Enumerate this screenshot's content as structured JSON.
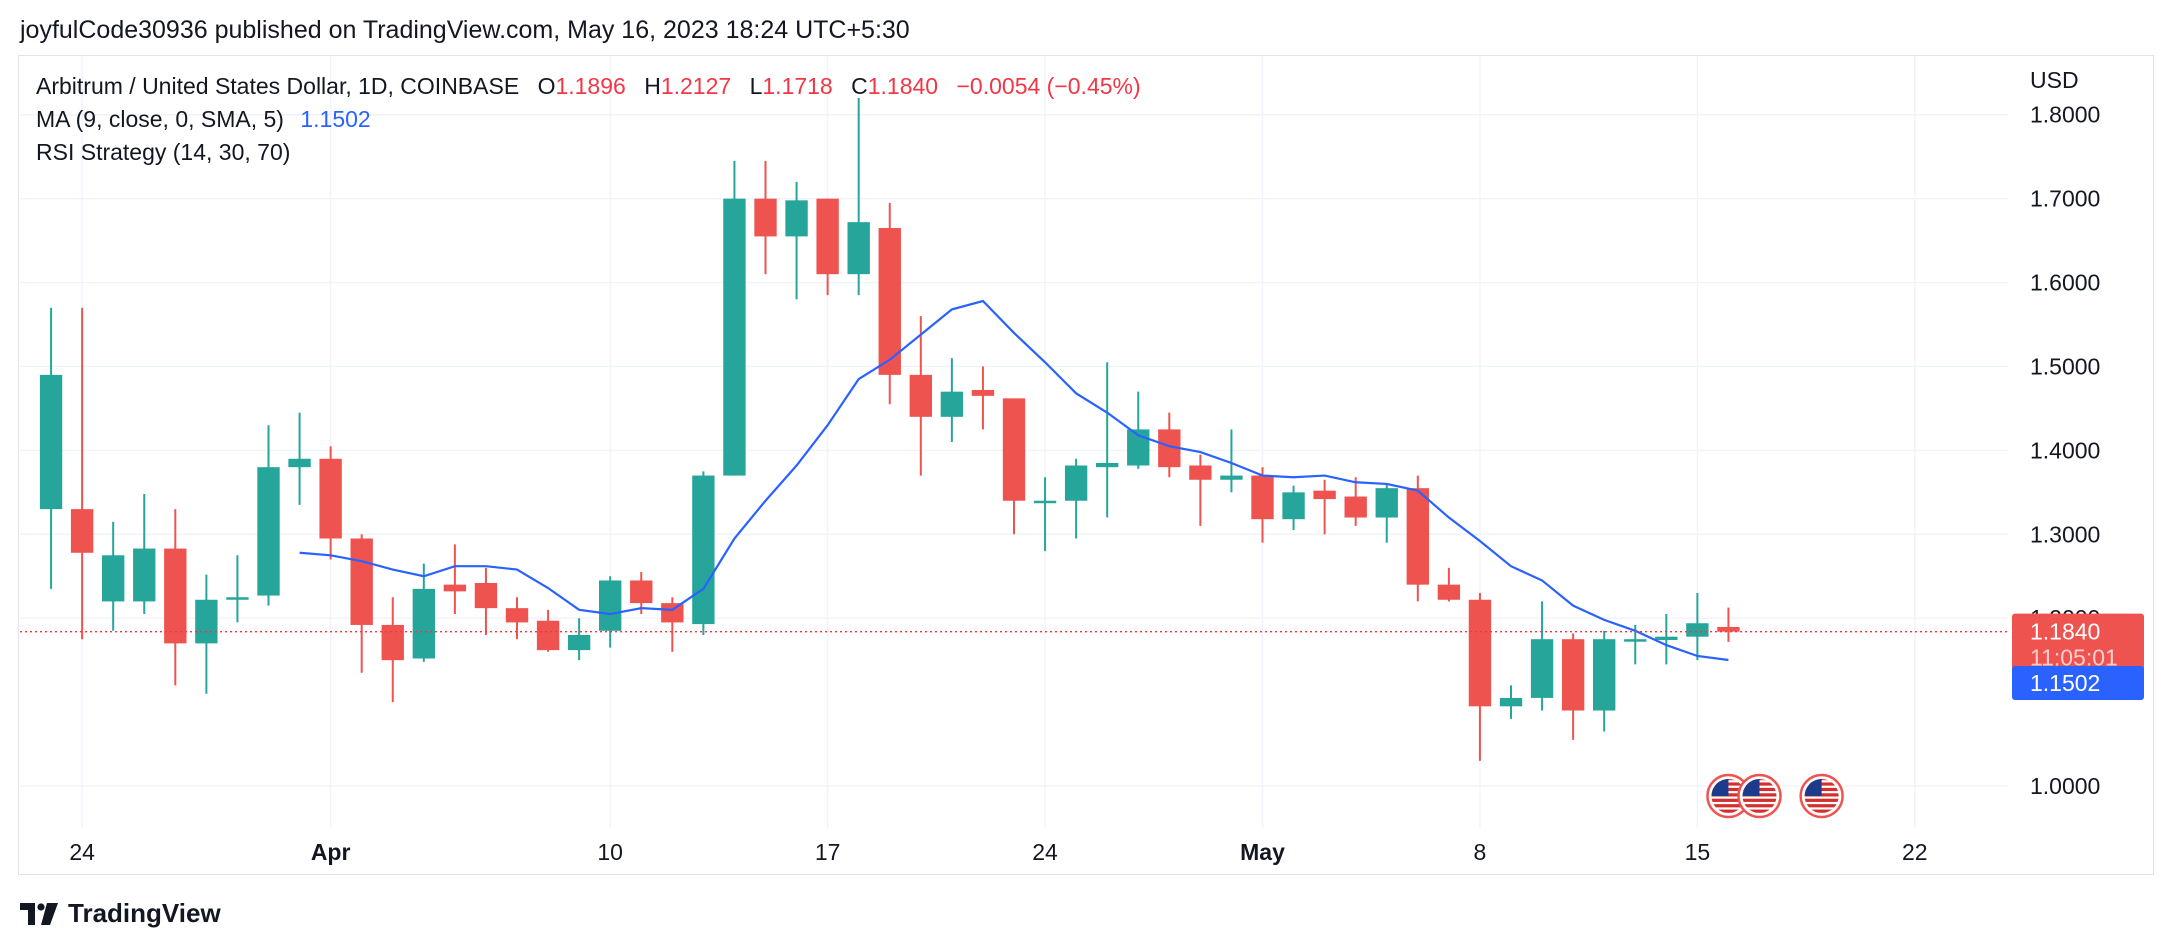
{
  "header": {
    "publisher_line": "joyfulCode30936 published on TradingView.com, May 16, 2023 18:24 UTC+5:30"
  },
  "legend": {
    "symbol": "Arbitrum / United States Dollar, 1D, COINBASE",
    "o_label": "O",
    "o_value": "1.1896",
    "h_label": "H",
    "h_value": "1.2127",
    "l_label": "L",
    "l_value": "1.1718",
    "c_label": "C",
    "c_value": "1.1840",
    "change": "−0.0054 (−0.45%)",
    "ma_label": "MA (9, close, 0, SMA, 5)",
    "ma_value": "1.1502",
    "rsi_label": "RSI Strategy (14, 30, 70)"
  },
  "footer": {
    "brand": "TradingView"
  },
  "colors": {
    "up": "#26a69a",
    "down": "#ef5350",
    "ma": "#2962ff",
    "grid": "#f0f3fa",
    "text": "#131722",
    "price_line": "#f23645"
  },
  "chart_data": {
    "type": "candlestick",
    "currency_label": "USD",
    "y_ticks": [
      "1.8000",
      "1.7000",
      "1.6000",
      "1.5000",
      "1.4000",
      "1.3000",
      "1.2000",
      "1.0000"
    ],
    "ylim": [
      0.95,
      1.87
    ],
    "x_ticks": [
      {
        "date": "2023-03-24",
        "label": "24",
        "bold": false
      },
      {
        "date": "2023-04-01",
        "label": "Apr",
        "bold": true
      },
      {
        "date": "2023-04-10",
        "label": "10",
        "bold": false
      },
      {
        "date": "2023-04-17",
        "label": "17",
        "bold": false
      },
      {
        "date": "2023-04-24",
        "label": "24",
        "bold": false
      },
      {
        "date": "2023-05-01",
        "label": "May",
        "bold": true
      },
      {
        "date": "2023-05-08",
        "label": "8",
        "bold": false
      },
      {
        "date": "2023-05-15",
        "label": "15",
        "bold": false
      },
      {
        "date": "2023-05-22",
        "label": "22",
        "bold": false
      }
    ],
    "x_range": [
      "2023-03-22",
      "2023-05-25"
    ],
    "grid": true,
    "price_label": {
      "value": "1.1840",
      "countdown": "11:05:01"
    },
    "ma_label": {
      "value": "1.1502"
    },
    "event_markers": {
      "icon": "us-flag-icon",
      "dates": [
        "2023-05-16",
        "2023-05-17",
        "2023-05-19"
      ]
    },
    "candles": [
      {
        "date": "2023-03-23",
        "o": 1.33,
        "h": 1.57,
        "l": 1.235,
        "c": 1.49
      },
      {
        "date": "2023-03-24",
        "o": 1.33,
        "h": 1.57,
        "l": 1.175,
        "c": 1.278
      },
      {
        "date": "2023-03-25",
        "o": 1.22,
        "h": 1.315,
        "l": 1.185,
        "c": 1.275
      },
      {
        "date": "2023-03-26",
        "o": 1.22,
        "h": 1.348,
        "l": 1.205,
        "c": 1.283
      },
      {
        "date": "2023-03-27",
        "o": 1.283,
        "h": 1.33,
        "l": 1.12,
        "c": 1.17
      },
      {
        "date": "2023-03-28",
        "o": 1.17,
        "h": 1.252,
        "l": 1.11,
        "c": 1.222
      },
      {
        "date": "2023-03-29",
        "o": 1.222,
        "h": 1.275,
        "l": 1.195,
        "c": 1.225
      },
      {
        "date": "2023-03-30",
        "o": 1.227,
        "h": 1.43,
        "l": 1.215,
        "c": 1.38
      },
      {
        "date": "2023-03-31",
        "o": 1.38,
        "h": 1.445,
        "l": 1.335,
        "c": 1.39
      },
      {
        "date": "2023-04-01",
        "o": 1.39,
        "h": 1.405,
        "l": 1.27,
        "c": 1.295
      },
      {
        "date": "2023-04-02",
        "o": 1.295,
        "h": 1.3,
        "l": 1.135,
        "c": 1.192
      },
      {
        "date": "2023-04-03",
        "o": 1.192,
        "h": 1.225,
        "l": 1.1,
        "c": 1.15
      },
      {
        "date": "2023-04-04",
        "o": 1.152,
        "h": 1.265,
        "l": 1.148,
        "c": 1.235
      },
      {
        "date": "2023-04-05",
        "o": 1.24,
        "h": 1.288,
        "l": 1.205,
        "c": 1.232
      },
      {
        "date": "2023-04-06",
        "o": 1.242,
        "h": 1.26,
        "l": 1.18,
        "c": 1.212
      },
      {
        "date": "2023-04-07",
        "o": 1.212,
        "h": 1.225,
        "l": 1.175,
        "c": 1.195
      },
      {
        "date": "2023-04-08",
        "o": 1.197,
        "h": 1.21,
        "l": 1.16,
        "c": 1.162
      },
      {
        "date": "2023-04-09",
        "o": 1.162,
        "h": 1.2,
        "l": 1.15,
        "c": 1.18
      },
      {
        "date": "2023-04-10",
        "o": 1.185,
        "h": 1.25,
        "l": 1.165,
        "c": 1.245
      },
      {
        "date": "2023-04-11",
        "o": 1.245,
        "h": 1.255,
        "l": 1.205,
        "c": 1.218
      },
      {
        "date": "2023-04-12",
        "o": 1.218,
        "h": 1.225,
        "l": 1.16,
        "c": 1.195
      },
      {
        "date": "2023-04-13",
        "o": 1.193,
        "h": 1.375,
        "l": 1.18,
        "c": 1.37
      },
      {
        "date": "2023-04-14",
        "o": 1.37,
        "h": 1.745,
        "l": 1.37,
        "c": 1.7
      },
      {
        "date": "2023-04-15",
        "o": 1.7,
        "h": 1.745,
        "l": 1.61,
        "c": 1.655
      },
      {
        "date": "2023-04-16",
        "o": 1.655,
        "h": 1.72,
        "l": 1.58,
        "c": 1.698
      },
      {
        "date": "2023-04-17",
        "o": 1.7,
        "h": 1.7,
        "l": 1.585,
        "c": 1.61
      },
      {
        "date": "2023-04-18",
        "o": 1.61,
        "h": 1.82,
        "l": 1.585,
        "c": 1.672
      },
      {
        "date": "2023-04-19",
        "o": 1.665,
        "h": 1.695,
        "l": 1.455,
        "c": 1.49
      },
      {
        "date": "2023-04-20",
        "o": 1.49,
        "h": 1.56,
        "l": 1.37,
        "c": 1.44
      },
      {
        "date": "2023-04-21",
        "o": 1.44,
        "h": 1.51,
        "l": 1.41,
        "c": 1.47
      },
      {
        "date": "2023-04-22",
        "o": 1.472,
        "h": 1.5,
        "l": 1.425,
        "c": 1.465
      },
      {
        "date": "2023-04-23",
        "o": 1.462,
        "h": 1.46,
        "l": 1.3,
        "c": 1.34
      },
      {
        "date": "2023-04-24",
        "o": 1.34,
        "h": 1.368,
        "l": 1.28,
        "c": 1.34
      },
      {
        "date": "2023-04-25",
        "o": 1.34,
        "h": 1.39,
        "l": 1.295,
        "c": 1.382
      },
      {
        "date": "2023-04-26",
        "o": 1.38,
        "h": 1.505,
        "l": 1.32,
        "c": 1.385
      },
      {
        "date": "2023-04-27",
        "o": 1.382,
        "h": 1.47,
        "l": 1.378,
        "c": 1.425
      },
      {
        "date": "2023-04-28",
        "o": 1.425,
        "h": 1.445,
        "l": 1.368,
        "c": 1.38
      },
      {
        "date": "2023-04-29",
        "o": 1.382,
        "h": 1.395,
        "l": 1.31,
        "c": 1.365
      },
      {
        "date": "2023-04-30",
        "o": 1.365,
        "h": 1.425,
        "l": 1.35,
        "c": 1.37
      },
      {
        "date": "2023-05-01",
        "o": 1.37,
        "h": 1.38,
        "l": 1.29,
        "c": 1.318
      },
      {
        "date": "2023-05-02",
        "o": 1.318,
        "h": 1.358,
        "l": 1.305,
        "c": 1.35
      },
      {
        "date": "2023-05-03",
        "o": 1.352,
        "h": 1.365,
        "l": 1.3,
        "c": 1.342
      },
      {
        "date": "2023-05-04",
        "o": 1.345,
        "h": 1.368,
        "l": 1.31,
        "c": 1.32
      },
      {
        "date": "2023-05-05",
        "o": 1.32,
        "h": 1.36,
        "l": 1.29,
        "c": 1.355
      },
      {
        "date": "2023-05-06",
        "o": 1.355,
        "h": 1.37,
        "l": 1.22,
        "c": 1.24
      },
      {
        "date": "2023-05-07",
        "o": 1.24,
        "h": 1.26,
        "l": 1.22,
        "c": 1.222
      },
      {
        "date": "2023-05-08",
        "o": 1.222,
        "h": 1.23,
        "l": 1.03,
        "c": 1.095
      },
      {
        "date": "2023-05-09",
        "o": 1.095,
        "h": 1.12,
        "l": 1.08,
        "c": 1.105
      },
      {
        "date": "2023-05-10",
        "o": 1.105,
        "h": 1.22,
        "l": 1.09,
        "c": 1.175
      },
      {
        "date": "2023-05-11",
        "o": 1.175,
        "h": 1.182,
        "l": 1.055,
        "c": 1.09
      },
      {
        "date": "2023-05-12",
        "o": 1.09,
        "h": 1.185,
        "l": 1.065,
        "c": 1.175
      },
      {
        "date": "2023-05-13",
        "o": 1.175,
        "h": 1.192,
        "l": 1.145,
        "c": 1.175
      },
      {
        "date": "2023-05-14",
        "o": 1.174,
        "h": 1.205,
        "l": 1.145,
        "c": 1.178
      },
      {
        "date": "2023-05-15",
        "o": 1.178,
        "h": 1.23,
        "l": 1.15,
        "c": 1.194
      },
      {
        "date": "2023-05-16",
        "o": 1.1896,
        "h": 1.2127,
        "l": 1.1718,
        "c": 1.184
      }
    ],
    "ma_series": [
      {
        "date": "2023-03-31",
        "v": 1.278
      },
      {
        "date": "2023-04-01",
        "v": 1.275
      },
      {
        "date": "2023-04-02",
        "v": 1.268
      },
      {
        "date": "2023-04-03",
        "v": 1.258
      },
      {
        "date": "2023-04-04",
        "v": 1.25
      },
      {
        "date": "2023-04-05",
        "v": 1.262
      },
      {
        "date": "2023-04-06",
        "v": 1.262
      },
      {
        "date": "2023-04-07",
        "v": 1.258
      },
      {
        "date": "2023-04-08",
        "v": 1.236
      },
      {
        "date": "2023-04-09",
        "v": 1.21
      },
      {
        "date": "2023-04-10",
        "v": 1.205
      },
      {
        "date": "2023-04-11",
        "v": 1.212
      },
      {
        "date": "2023-04-12",
        "v": 1.21
      },
      {
        "date": "2023-04-13",
        "v": 1.235
      },
      {
        "date": "2023-04-14",
        "v": 1.295
      },
      {
        "date": "2023-04-15",
        "v": 1.34
      },
      {
        "date": "2023-04-16",
        "v": 1.382
      },
      {
        "date": "2023-04-17",
        "v": 1.43
      },
      {
        "date": "2023-04-18",
        "v": 1.485
      },
      {
        "date": "2023-04-19",
        "v": 1.508
      },
      {
        "date": "2023-04-20",
        "v": 1.538
      },
      {
        "date": "2023-04-21",
        "v": 1.568
      },
      {
        "date": "2023-04-22",
        "v": 1.578
      },
      {
        "date": "2023-04-23",
        "v": 1.54
      },
      {
        "date": "2023-04-24",
        "v": 1.505
      },
      {
        "date": "2023-04-25",
        "v": 1.468
      },
      {
        "date": "2023-04-26",
        "v": 1.445
      },
      {
        "date": "2023-04-27",
        "v": 1.418
      },
      {
        "date": "2023-04-28",
        "v": 1.405
      },
      {
        "date": "2023-04-29",
        "v": 1.398
      },
      {
        "date": "2023-04-30",
        "v": 1.385
      },
      {
        "date": "2023-05-01",
        "v": 1.37
      },
      {
        "date": "2023-05-02",
        "v": 1.368
      },
      {
        "date": "2023-05-03",
        "v": 1.37
      },
      {
        "date": "2023-05-04",
        "v": 1.362
      },
      {
        "date": "2023-05-05",
        "v": 1.36
      },
      {
        "date": "2023-05-06",
        "v": 1.352
      },
      {
        "date": "2023-05-07",
        "v": 1.32
      },
      {
        "date": "2023-05-08",
        "v": 1.292
      },
      {
        "date": "2023-05-09",
        "v": 1.262
      },
      {
        "date": "2023-05-10",
        "v": 1.245
      },
      {
        "date": "2023-05-11",
        "v": 1.215
      },
      {
        "date": "2023-05-12",
        "v": 1.198
      },
      {
        "date": "2023-05-13",
        "v": 1.185
      },
      {
        "date": "2023-05-14",
        "v": 1.168
      },
      {
        "date": "2023-05-15",
        "v": 1.155
      },
      {
        "date": "2023-05-16",
        "v": 1.1502
      }
    ]
  }
}
